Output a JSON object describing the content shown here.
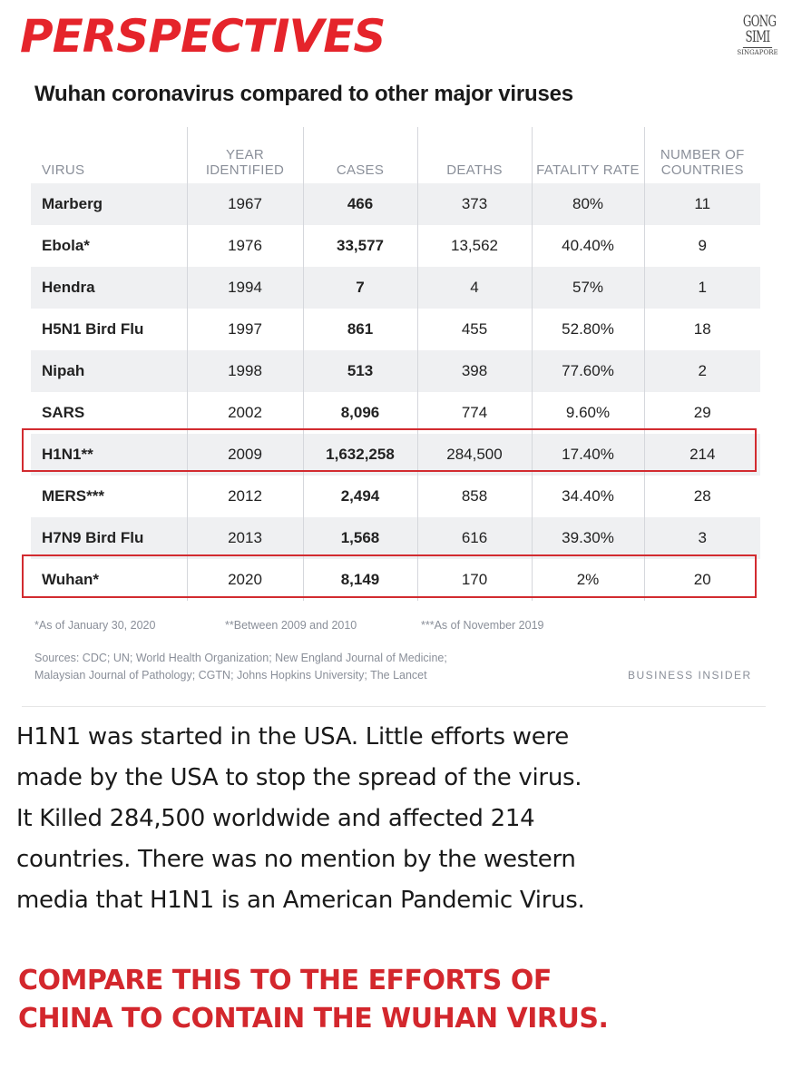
{
  "header": {
    "title": "PERSPECTIVES",
    "subtitle": "Wuhan coronavirus compared to other major viruses",
    "brand": [
      "GONG",
      "SIMI",
      "SINGAPORE"
    ]
  },
  "table": {
    "columns": [
      "VIRUS",
      "YEAR IDENTIFIED",
      "CASES",
      "DEATHS",
      "FATALITY RATE",
      "NUMBER OF COUNTRIES"
    ],
    "rows": [
      [
        "Marberg",
        "1967",
        "466",
        "373",
        "80%",
        "11"
      ],
      [
        "Ebola*",
        "1976",
        "33,577",
        "13,562",
        "40.40%",
        "9"
      ],
      [
        "Hendra",
        "1994",
        "7",
        "4",
        "57%",
        "1"
      ],
      [
        "H5N1 Bird Flu",
        "1997",
        "861",
        "455",
        "52.80%",
        "18"
      ],
      [
        "Nipah",
        "1998",
        "513",
        "398",
        "77.60%",
        "2"
      ],
      [
        "SARS",
        "2002",
        "8,096",
        "774",
        "9.60%",
        "29"
      ],
      [
        "H1N1**",
        "2009",
        "1,632,258",
        "284,500",
        "17.40%",
        "214"
      ],
      [
        "MERS***",
        "2012",
        "2,494",
        "858",
        "34.40%",
        "28"
      ],
      [
        "H7N9 Bird Flu",
        "2013",
        "1,568",
        "616",
        "39.30%",
        "3"
      ],
      [
        "Wuhan*",
        "2020",
        "8,149",
        "170",
        "2%",
        "20"
      ]
    ],
    "highlighted_rows": [
      "H1N1**",
      "Wuhan*"
    ],
    "highlight_color": "#d22b30"
  },
  "footnotes": [
    "*As of January 30, 2020",
    "**Between 2009 and 2010",
    "***As of November 2019"
  ],
  "sources": [
    "Sources: CDC; UN; World Health Organization; New England Journal of Medicine;",
    "Malaysian Journal of Pathology; CGTN; Johns Hopkins University; The Lancet"
  ],
  "publisher": "BUSINESS INSIDER",
  "body_text": [
    "H1N1 was started in the USA. Little efforts were",
    "made by the USA to stop the spread of the virus.",
    "It Killed 284,500 worldwide and affected 214",
    "countries. There was no mention by the western",
    "media that H1N1 is an American Pandemic Virus."
  ],
  "callout": [
    "COMPARE THIS TO THE EFFORTS OF",
    "CHINA TO CONTAIN THE WUHAN VIRUS."
  ],
  "colors": {
    "accent_red": "#e5242b",
    "callout_red": "#d3272d",
    "header_gray": "#8a8f99",
    "stripe": "#eff0f2"
  }
}
